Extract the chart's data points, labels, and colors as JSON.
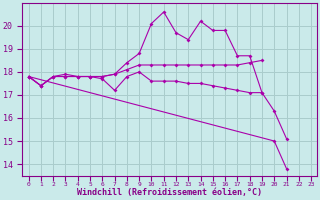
{
  "xlabel": "Windchill (Refroidissement éolien,°C)",
  "background_color": "#caeaea",
  "grid_color": "#aacccc",
  "line_color": "#aa00aa",
  "x": [
    0,
    1,
    2,
    3,
    4,
    5,
    6,
    7,
    8,
    9,
    10,
    11,
    12,
    13,
    14,
    15,
    16,
    17,
    18,
    19,
    20,
    21,
    22,
    23
  ],
  "series1": [
    17.8,
    17.4,
    17.8,
    17.9,
    17.8,
    17.8,
    17.8,
    17.9,
    18.4,
    18.8,
    20.1,
    20.6,
    19.7,
    19.4,
    20.2,
    19.8,
    19.8,
    18.7,
    18.7,
    17.1,
    16.3,
    15.1,
    null,
    null
  ],
  "series2": [
    17.8,
    17.4,
    17.8,
    17.8,
    17.8,
    17.8,
    17.7,
    17.2,
    17.8,
    18.0,
    17.6,
    17.6,
    17.6,
    17.5,
    17.5,
    17.4,
    17.3,
    17.2,
    17.1,
    17.1,
    null,
    null,
    null,
    null
  ],
  "series3": [
    17.8,
    17.4,
    17.8,
    17.8,
    17.8,
    17.8,
    17.8,
    17.9,
    18.1,
    18.3,
    18.3,
    18.3,
    18.3,
    18.3,
    18.3,
    18.3,
    18.3,
    18.3,
    18.4,
    18.5,
    null,
    null,
    null,
    null
  ],
  "series4": [
    17.8,
    null,
    null,
    null,
    null,
    null,
    null,
    null,
    null,
    null,
    null,
    null,
    null,
    null,
    null,
    null,
    null,
    null,
    null,
    null,
    15.0,
    13.8,
    null,
    null
  ],
  "ylim": [
    13.5,
    21.0
  ],
  "yticks": [
    14,
    15,
    16,
    17,
    18,
    19,
    20
  ],
  "xlim": [
    -0.5,
    23.5
  ]
}
